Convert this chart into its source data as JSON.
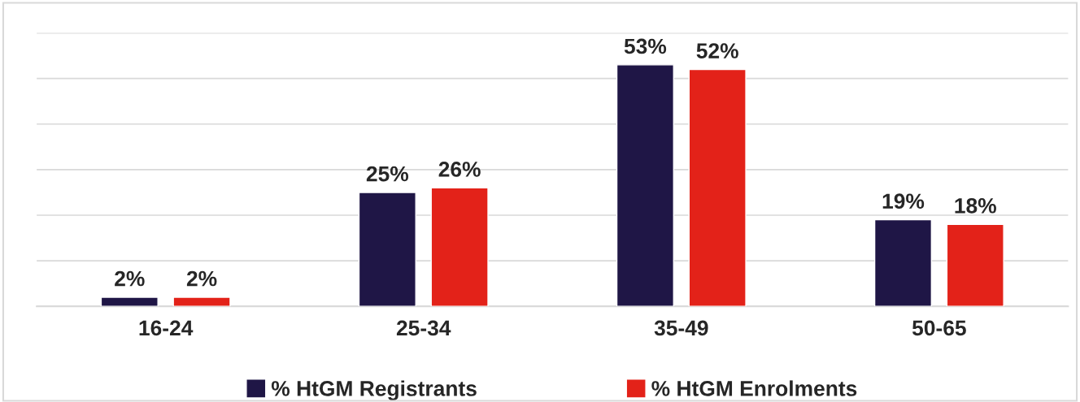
{
  "chart_data": {
    "type": "bar",
    "categories": [
      "16-24",
      "25-34",
      "35-49",
      "50-65"
    ],
    "series": [
      {
        "name": "% HtGM Registrants",
        "color": "#1f1646",
        "values": [
          2,
          25,
          53,
          19
        ],
        "value_labels": [
          "2%",
          "25%",
          "53%",
          "19%"
        ]
      },
      {
        "name": "% HtGM Enrolments",
        "color": "#e32219",
        "values": [
          2,
          26,
          52,
          18
        ],
        "value_labels": [
          "2%",
          "26%",
          "52%",
          "18%"
        ]
      }
    ],
    "ylim": [
      0,
      60
    ],
    "yticks": [
      {
        "value": 0,
        "label": null
      },
      {
        "value": 10,
        "label": null
      },
      {
        "value": 20,
        "label": null
      },
      {
        "value": 30,
        "label": null
      },
      {
        "value": 40,
        "label": null
      },
      {
        "value": 50,
        "label": null
      },
      {
        "value": 60,
        "label": null
      }
    ],
    "tick_labels": "x",
    "grid": "y",
    "legend": "bottom"
  }
}
